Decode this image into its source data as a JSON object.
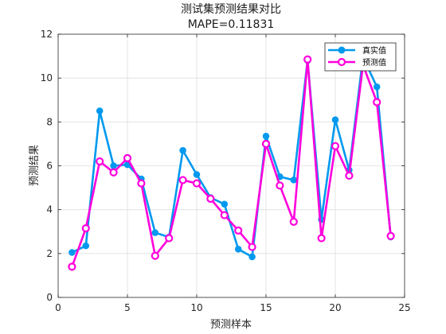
{
  "chart_data": {
    "type": "line",
    "title": "测试集预测结果对比",
    "subtitle": "MAPE=0.11831",
    "xlabel": "预测样本",
    "ylabel": "预测结果",
    "xlim": [
      0,
      25
    ],
    "ylim": [
      0,
      12
    ],
    "x_ticks": [
      0,
      5,
      10,
      15,
      20,
      25
    ],
    "y_ticks": [
      0,
      2,
      4,
      6,
      8,
      10,
      12
    ],
    "grid": true,
    "legend_position": "top-right",
    "x": [
      1,
      2,
      3,
      4,
      5,
      6,
      7,
      8,
      9,
      10,
      11,
      12,
      13,
      14,
      15,
      16,
      17,
      18,
      19,
      20,
      21,
      22,
      23,
      24
    ],
    "series": [
      {
        "name": "真实值",
        "color": "#0099ee",
        "marker": "filled-circle",
        "values": [
          2.05,
          2.35,
          8.5,
          6.0,
          6.05,
          5.4,
          2.95,
          2.75,
          6.7,
          5.6,
          4.55,
          4.25,
          2.2,
          1.85,
          7.35,
          5.5,
          5.35,
          10.8,
          3.55,
          8.1,
          5.8,
          10.95,
          9.6,
          2.75
        ]
      },
      {
        "name": "预测值",
        "color": "#ff00dd",
        "marker": "open-circle",
        "values": [
          1.4,
          3.15,
          6.2,
          5.7,
          6.35,
          5.2,
          1.9,
          2.7,
          5.35,
          5.2,
          4.5,
          3.75,
          3.05,
          2.3,
          7.0,
          5.1,
          3.45,
          10.85,
          2.7,
          6.9,
          5.55,
          10.6,
          8.9,
          2.8
        ]
      }
    ]
  }
}
